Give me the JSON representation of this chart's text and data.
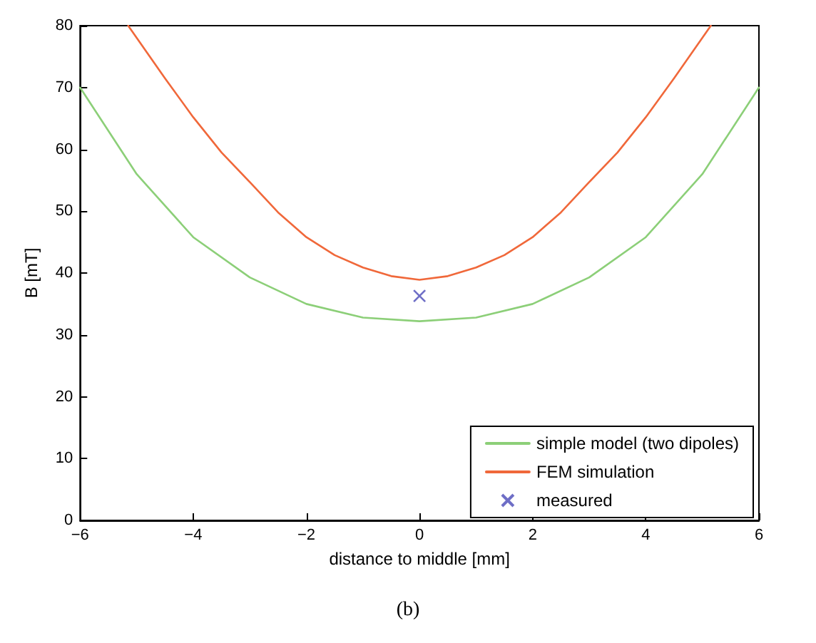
{
  "chart_data": {
    "type": "line",
    "xlabel": "distance to middle [mm]",
    "ylabel": "B [mT]",
    "xlim": [
      -6,
      6
    ],
    "ylim": [
      0,
      80
    ],
    "xticks": [
      -6,
      -4,
      -2,
      0,
      2,
      4,
      6
    ],
    "yticks": [
      0,
      10,
      20,
      30,
      40,
      50,
      60,
      70,
      80
    ],
    "grid": false,
    "legend": "bottom right",
    "annotations": [
      "(b)"
    ],
    "series": [
      {
        "name": "simple model (two dipoles)",
        "color": "#8ccf78",
        "x": [
          -6,
          -5,
          -4,
          -3,
          -2,
          -1,
          0,
          1,
          2,
          3,
          4,
          5,
          6
        ],
        "values": [
          70,
          56,
          45.8,
          39.3,
          35,
          32.8,
          32.2,
          32.8,
          35,
          39.3,
          45.8,
          56,
          70
        ],
        "marker": "none"
      },
      {
        "name": "FEM simulation",
        "color": "#f0683a",
        "x": [
          -5.15,
          -4.5,
          -4,
          -3.5,
          -3,
          -2.5,
          -2,
          -1.5,
          -1,
          -0.5,
          0,
          0.5,
          1,
          1.5,
          2,
          2.5,
          3,
          3.5,
          4,
          4.5,
          5.15
        ],
        "values": [
          80,
          71.5,
          65.2,
          59.5,
          54.7,
          49.8,
          45.8,
          42.9,
          40.9,
          39.5,
          38.9,
          39.5,
          40.9,
          42.9,
          45.8,
          49.8,
          54.7,
          59.5,
          65.2,
          71.5,
          80
        ],
        "marker": "none"
      },
      {
        "name": "measured",
        "color": "#4a4ab8",
        "type": "scatter",
        "x": [
          0
        ],
        "values": [
          36.3
        ],
        "marker": "cross"
      }
    ]
  }
}
